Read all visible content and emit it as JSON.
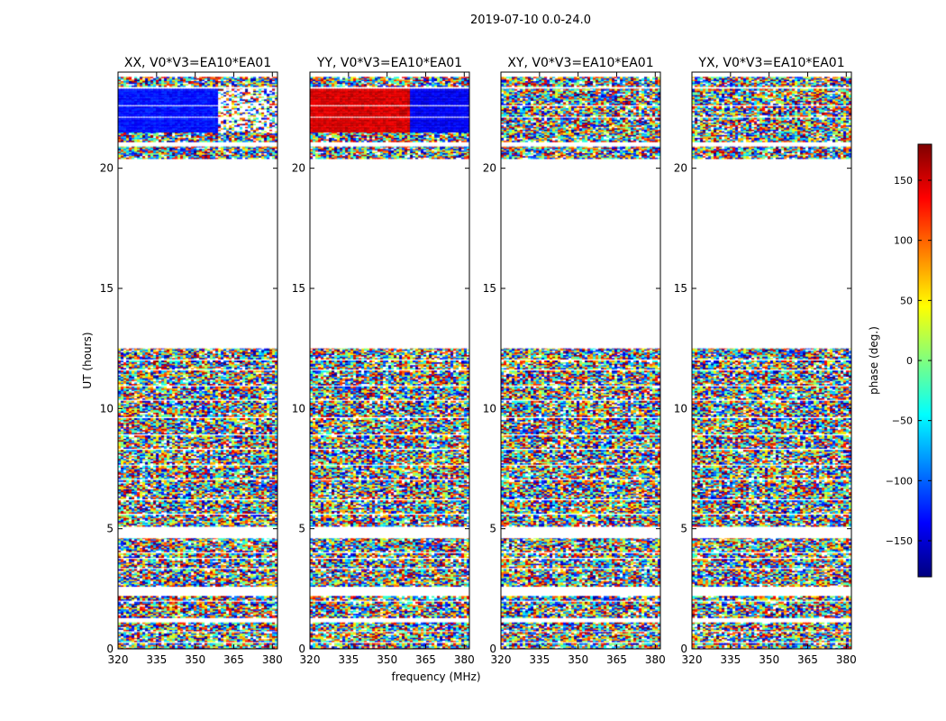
{
  "figure": {
    "suptitle": "2019-07-10 0.0-24.0",
    "xlabel": "frequency (MHz)",
    "ylabel": "UT (hours)"
  },
  "colorbar": {
    "label": "phase (deg.)",
    "range": [
      -180,
      180
    ],
    "ticks": [
      150,
      100,
      50,
      0,
      -50,
      -100,
      -150
    ],
    "tick_labels": [
      "150",
      "100",
      "50",
      "0",
      "−50",
      "−100",
      "−150"
    ],
    "colormap": [
      "#00007f",
      "#0000ff",
      "#007fff",
      "#00ffff",
      "#7fff7f",
      "#ffff00",
      "#ff7f00",
      "#ff0000",
      "#7f0000"
    ]
  },
  "chart_data": [
    {
      "type": "heatmap",
      "title": "XX, V0*V3=EA10*EA01",
      "xlabel": "",
      "ylabel": "UT (hours)",
      "xlim": [
        320,
        382
      ],
      "ylim": [
        0,
        24
      ],
      "x_ticks": [
        320,
        335,
        350,
        365,
        380
      ],
      "y_ticks": [
        0,
        5,
        10,
        15,
        20
      ],
      "value": "phase (deg.)",
      "coherent_rows": {
        "ut_range": [
          21.5,
          23.3
        ],
        "phase_low_freq": -130,
        "phase_high_freq": null,
        "transition_freq": 359
      }
    },
    {
      "type": "heatmap",
      "title": "YY, V0*V3=EA10*EA01",
      "xlabel": "frequency (MHz)",
      "ylabel": "",
      "xlim": [
        320,
        382
      ],
      "ylim": [
        0,
        24
      ],
      "x_ticks": [
        320,
        335,
        350,
        365,
        380
      ],
      "y_ticks": [
        0,
        5,
        10,
        15,
        20
      ],
      "value": "phase (deg.)",
      "coherent_rows": {
        "ut_range": [
          21.5,
          23.3
        ],
        "phase_low_freq": 150,
        "phase_high_freq": -140,
        "transition_freq": 359
      }
    },
    {
      "type": "heatmap",
      "title": "XY, V0*V3=EA10*EA01",
      "xlabel": "",
      "ylabel": "",
      "xlim": [
        320,
        382
      ],
      "ylim": [
        0,
        24
      ],
      "x_ticks": [
        320,
        335,
        350,
        365,
        380
      ],
      "y_ticks": [
        0,
        5,
        10,
        15,
        20
      ],
      "value": "phase (deg.)",
      "coherent_rows": null
    },
    {
      "type": "heatmap",
      "title": "YX, V0*V3=EA10*EA01",
      "xlabel": "",
      "ylabel": "",
      "xlim": [
        320,
        382
      ],
      "ylim": [
        0,
        24
      ],
      "x_ticks": [
        320,
        335,
        350,
        365,
        380
      ],
      "y_ticks": [
        0,
        5,
        10,
        15,
        20
      ],
      "value": "phase (deg.)",
      "coherent_rows": null
    }
  ]
}
